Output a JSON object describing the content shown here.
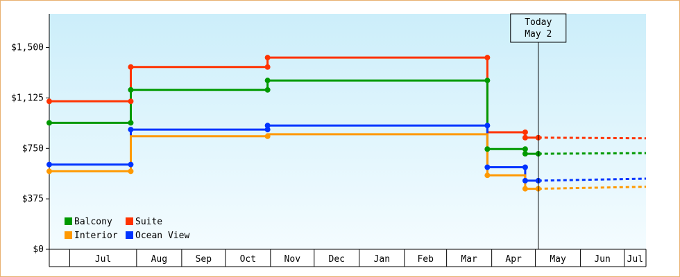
{
  "chart_data": {
    "type": "line",
    "step": true,
    "ylim": [
      0,
      1750
    ],
    "y_ticks": [
      {
        "value": 0,
        "label": "$0"
      },
      {
        "value": 375,
        "label": "$375"
      },
      {
        "value": 750,
        "label": "$750"
      },
      {
        "value": 1125,
        "label": "$1,125"
      },
      {
        "value": 1500,
        "label": "$1,500"
      }
    ],
    "xlim": [
      "2023-06-01",
      "2024-07-15"
    ],
    "month_ticks": [
      {
        "label": "Jul",
        "start": "2023-06-15",
        "end": "2023-07-31"
      },
      {
        "label": "Aug",
        "start": "2023-07-31",
        "end": "2023-08-31"
      },
      {
        "label": "Sep",
        "start": "2023-08-31",
        "end": "2023-09-30"
      },
      {
        "label": "Oct",
        "start": "2023-09-30",
        "end": "2023-10-31"
      },
      {
        "label": "Nov",
        "start": "2023-10-31",
        "end": "2023-11-30"
      },
      {
        "label": "Dec",
        "start": "2023-11-30",
        "end": "2023-12-31"
      },
      {
        "label": "Jan",
        "start": "2023-12-31",
        "end": "2024-01-31"
      },
      {
        "label": "Feb",
        "start": "2024-01-31",
        "end": "2024-02-29"
      },
      {
        "label": "Mar",
        "start": "2024-02-29",
        "end": "2024-03-31"
      },
      {
        "label": "Apr",
        "start": "2024-03-31",
        "end": "2024-04-30"
      },
      {
        "label": "May",
        "start": "2024-04-30",
        "end": "2024-05-31"
      },
      {
        "label": "Jun",
        "start": "2024-05-31",
        "end": "2024-06-30"
      },
      {
        "label": "Jul",
        "start": "2024-06-30",
        "end": "2024-07-15"
      }
    ],
    "today": {
      "date": "2024-05-02",
      "label_line1": "Today",
      "label_line2": "May 2"
    },
    "projection_end": "2024-07-15",
    "series": [
      {
        "name": "Suite",
        "color": "#ff3300",
        "points": [
          [
            "2023-06-01",
            1100
          ],
          [
            "2023-07-27",
            1100
          ],
          [
            "2023-07-27",
            1355
          ],
          [
            "2023-10-29",
            1355
          ],
          [
            "2023-10-29",
            1425
          ],
          [
            "2024-03-28",
            1425
          ],
          [
            "2024-03-28",
            870
          ],
          [
            "2024-04-23",
            870
          ],
          [
            "2024-04-23",
            830
          ],
          [
            "2024-05-02",
            830
          ]
        ],
        "markers": [
          [
            "2023-06-01",
            1100
          ],
          [
            "2023-07-27",
            1100
          ],
          [
            "2023-07-27",
            1355
          ],
          [
            "2023-10-29",
            1355
          ],
          [
            "2023-10-29",
            1425
          ],
          [
            "2024-03-28",
            1425
          ],
          [
            "2024-04-23",
            870
          ],
          [
            "2024-04-23",
            830
          ],
          [
            "2024-05-02",
            830
          ]
        ],
        "projection": [
          [
            "2024-05-02",
            830
          ],
          [
            "2024-07-15",
            825
          ]
        ]
      },
      {
        "name": "Balcony",
        "color": "#009900",
        "points": [
          [
            "2023-06-01",
            940
          ],
          [
            "2023-07-27",
            940
          ],
          [
            "2023-07-27",
            1185
          ],
          [
            "2023-10-29",
            1185
          ],
          [
            "2023-10-29",
            1255
          ],
          [
            "2024-03-28",
            1255
          ],
          [
            "2024-03-28",
            745
          ],
          [
            "2024-04-23",
            745
          ],
          [
            "2024-04-23",
            710
          ],
          [
            "2024-05-02",
            710
          ]
        ],
        "markers": [
          [
            "2023-06-01",
            940
          ],
          [
            "2023-07-27",
            940
          ],
          [
            "2023-07-27",
            1185
          ],
          [
            "2023-10-29",
            1185
          ],
          [
            "2023-10-29",
            1255
          ],
          [
            "2024-03-28",
            1255
          ],
          [
            "2024-03-28",
            745
          ],
          [
            "2024-04-23",
            745
          ],
          [
            "2024-04-23",
            710
          ],
          [
            "2024-05-02",
            710
          ]
        ],
        "projection": [
          [
            "2024-05-02",
            710
          ],
          [
            "2024-07-15",
            715
          ]
        ]
      },
      {
        "name": "Ocean View",
        "color": "#0033ff",
        "points": [
          [
            "2023-06-01",
            630
          ],
          [
            "2023-07-27",
            630
          ],
          [
            "2023-07-27",
            890
          ],
          [
            "2023-10-29",
            890
          ],
          [
            "2023-10-29",
            920
          ],
          [
            "2024-03-28",
            920
          ],
          [
            "2024-03-28",
            610
          ],
          [
            "2024-04-23",
            610
          ],
          [
            "2024-04-23",
            510
          ],
          [
            "2024-05-02",
            510
          ]
        ],
        "markers": [
          [
            "2023-06-01",
            630
          ],
          [
            "2023-07-27",
            630
          ],
          [
            "2023-07-27",
            890
          ],
          [
            "2023-10-29",
            890
          ],
          [
            "2023-10-29",
            920
          ],
          [
            "2024-03-28",
            920
          ],
          [
            "2024-03-28",
            610
          ],
          [
            "2024-04-23",
            610
          ],
          [
            "2024-04-23",
            510
          ],
          [
            "2024-05-02",
            510
          ]
        ],
        "projection": [
          [
            "2024-05-02",
            510
          ],
          [
            "2024-07-15",
            525
          ]
        ]
      },
      {
        "name": "Interior",
        "color": "#ff9900",
        "points": [
          [
            "2023-06-01",
            580
          ],
          [
            "2023-07-27",
            580
          ],
          [
            "2023-07-27",
            840
          ],
          [
            "2023-10-29",
            840
          ],
          [
            "2023-10-29",
            855
          ],
          [
            "2024-03-28",
            855
          ],
          [
            "2024-03-28",
            550
          ],
          [
            "2024-04-23",
            550
          ],
          [
            "2024-04-23",
            450
          ],
          [
            "2024-05-02",
            450
          ]
        ],
        "markers": [
          [
            "2023-06-01",
            580
          ],
          [
            "2023-07-27",
            580
          ],
          [
            "2023-10-29",
            840
          ],
          [
            "2024-03-28",
            550
          ],
          [
            "2024-04-23",
            450
          ],
          [
            "2024-05-02",
            450
          ]
        ],
        "projection": [
          [
            "2024-05-02",
            450
          ],
          [
            "2024-07-15",
            465
          ]
        ]
      }
    ],
    "legend": {
      "placement": "bottom-left",
      "rows": [
        [
          {
            "name": "Balcony",
            "color": "#009900"
          },
          {
            "name": "Suite",
            "color": "#ff3300"
          }
        ],
        [
          {
            "name": "Interior",
            "color": "#ff9900"
          },
          {
            "name": "Ocean View",
            "color": "#0033ff"
          }
        ]
      ]
    },
    "colors": {
      "background_top": "#cceefa",
      "background_bottom": "#f4fcff",
      "frame": "#e8b070",
      "axis": "#000000"
    }
  }
}
